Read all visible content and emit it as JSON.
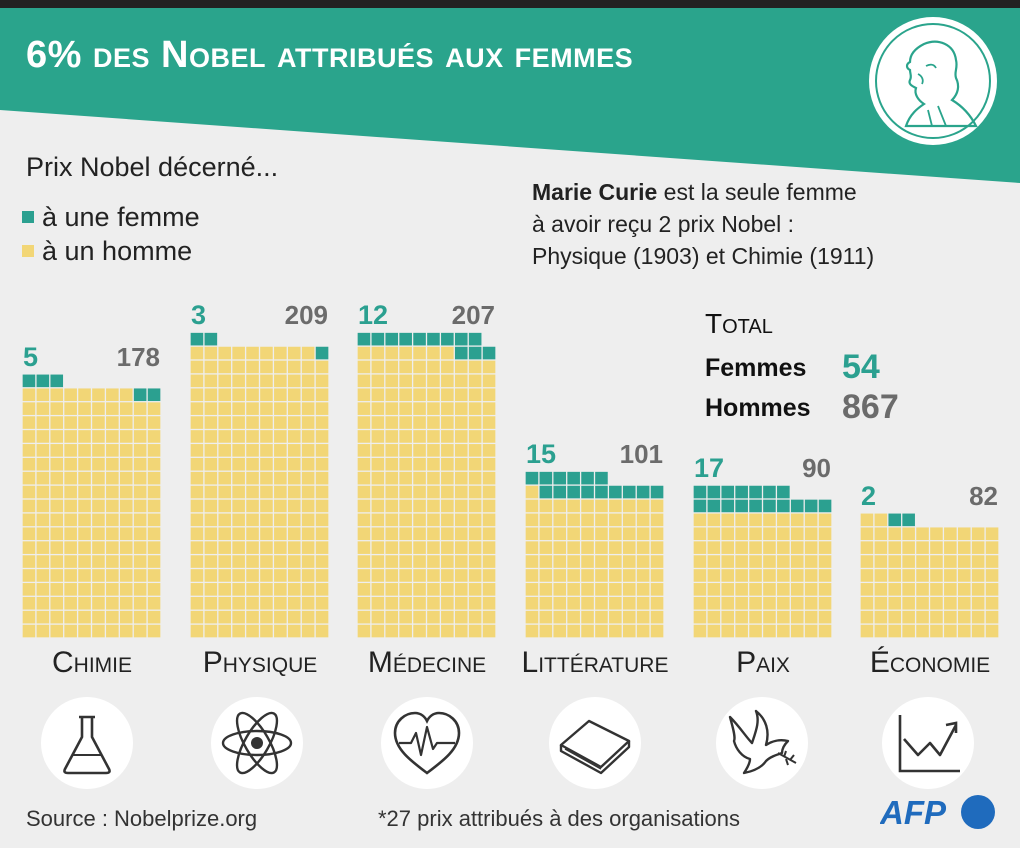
{
  "title": "6% des Nobel attribués aux femmes",
  "legend": {
    "title": "Prix Nobel décerné...",
    "women": "à une femme",
    "men": "à un homme"
  },
  "note": {
    "bold": "Marie Curie",
    "line1_rest": " est la seule femme",
    "line2": "à avoir reçu 2 prix Nobel :",
    "line3": "Physique (1903)  et Chimie (1911)"
  },
  "total": {
    "heading": "Total",
    "women_label": "Femmes",
    "women_value": "54",
    "men_label": "Hommes",
    "men_value": "867"
  },
  "colors": {
    "banner": "#2aa48c",
    "women": "#2ba090",
    "men": "#f2d676",
    "men_number": "#6b6b6b",
    "afp_blue": "#1f6bbd"
  },
  "chart_data": {
    "type": "waffle",
    "units_per_square": 1,
    "categories": [
      "Chimie",
      "Physique",
      "Médecine",
      "Littérature",
      "Paix",
      "Économie"
    ],
    "series": [
      {
        "name": "à une femme",
        "values": [
          5,
          3,
          12,
          15,
          17,
          2
        ]
      },
      {
        "name": "à un homme",
        "values": [
          178,
          209,
          207,
          101,
          90,
          82
        ]
      }
    ],
    "icons": [
      "flask-icon",
      "atom-icon",
      "heart-pulse-icon",
      "book-icon",
      "dove-icon",
      "rising-chart-icon"
    ]
  },
  "footer": {
    "source": "Source : Nobelprize.org",
    "footnote": "*27 prix attribués à des organisations",
    "logo": "AFP"
  }
}
